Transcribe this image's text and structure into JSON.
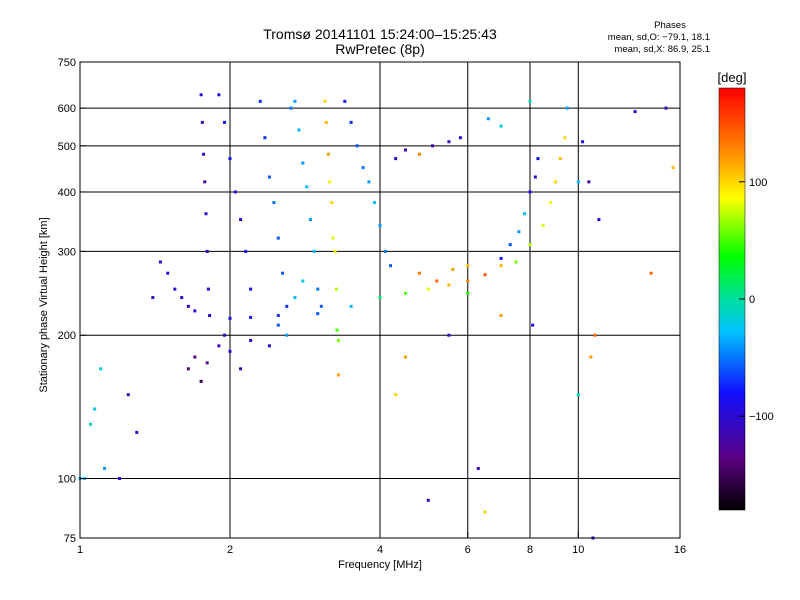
{
  "title_line1": "Tromsø 20141101 15:24:00–15:25:43",
  "title_line2": "RwPretec (8p)",
  "stats": {
    "header": "Phases",
    "line_o": "mean, sd,O: −79.1, 18.1",
    "line_x": "mean, sd,X:  86.9, 25.1"
  },
  "colorbar": {
    "unit_label": "[deg]",
    "range": [
      -180,
      180
    ],
    "ticks": [
      {
        "value": 100,
        "label": "100"
      },
      {
        "value": 0,
        "label": "0"
      },
      {
        "value": -100,
        "label": "−100"
      }
    ]
  },
  "chart_data": {
    "type": "scatter",
    "xlabel": "Frequency [MHz]",
    "ylabel": "Stationary phase Virtual Height [km]",
    "xscale": "log",
    "yscale": "log",
    "xlim": [
      1,
      16
    ],
    "ylim": [
      75,
      750
    ],
    "x_ticks": [
      {
        "value": 1,
        "label": "1"
      },
      {
        "value": 2,
        "label": "2"
      },
      {
        "value": 4,
        "label": "4"
      },
      {
        "value": 6,
        "label": "6"
      },
      {
        "value": 8,
        "label": "8"
      },
      {
        "value": 10,
        "label": "10"
      },
      {
        "value": 16,
        "label": "16"
      }
    ],
    "y_ticks": [
      {
        "value": 75,
        "label": "75"
      },
      {
        "value": 100,
        "label": "100"
      },
      {
        "value": 200,
        "label": "200"
      },
      {
        "value": 300,
        "label": "300"
      },
      {
        "value": 400,
        "label": "400"
      },
      {
        "value": 500,
        "label": "500"
      },
      {
        "value": 600,
        "label": "600"
      },
      {
        "value": 750,
        "label": "750"
      }
    ],
    "grid_x": [
      2,
      4,
      6,
      8,
      10
    ],
    "grid_y": [
      100,
      200,
      300,
      400,
      500,
      600
    ],
    "grid": true,
    "color_encoding": "phase in degrees",
    "series": [
      {
        "points": [
          [
            1.0,
            100,
            -30
          ],
          [
            1.02,
            100,
            -20
          ],
          [
            1.05,
            130,
            -10
          ],
          [
            1.07,
            140,
            -20
          ],
          [
            1.1,
            170,
            -20
          ],
          [
            1.12,
            105,
            -40
          ],
          [
            1.2,
            100,
            -90
          ],
          [
            1.25,
            150,
            -110
          ],
          [
            1.3,
            125,
            -100
          ],
          [
            1.4,
            240,
            -110
          ],
          [
            1.45,
            285,
            -100
          ],
          [
            1.5,
            270,
            -90
          ],
          [
            1.55,
            250,
            -100
          ],
          [
            1.6,
            240,
            -100
          ],
          [
            1.65,
            230,
            -110
          ],
          [
            1.7,
            225,
            -100
          ]
        ]
      },
      {
        "points": [
          [
            1.65,
            170,
            -140
          ],
          [
            1.7,
            180,
            -140
          ],
          [
            1.75,
            160,
            -150
          ],
          [
            1.8,
            175,
            -130
          ],
          [
            1.9,
            190,
            -120
          ],
          [
            1.95,
            200,
            -110
          ],
          [
            2.0,
            185,
            -100
          ],
          [
            2.1,
            170,
            -110
          ],
          [
            2.2,
            195,
            -100
          ],
          [
            2.4,
            190,
            -90
          ],
          [
            2.5,
            210,
            -60
          ],
          [
            2.6,
            200,
            -40
          ],
          [
            2.7,
            240,
            -30
          ],
          [
            2.8,
            260,
            -20
          ]
        ]
      },
      {
        "points": [
          [
            1.75,
            640,
            -100
          ],
          [
            1.76,
            560,
            -110
          ],
          [
            1.77,
            480,
            -100
          ],
          [
            1.78,
            420,
            -120
          ],
          [
            1.79,
            360,
            -100
          ],
          [
            1.8,
            300,
            -110
          ],
          [
            1.81,
            250,
            -100
          ],
          [
            1.82,
            220,
            -100
          ],
          [
            1.9,
            640,
            -90
          ],
          [
            1.95,
            560,
            -80
          ],
          [
            2.0,
            470,
            -80
          ],
          [
            2.05,
            400,
            -100
          ],
          [
            2.1,
            350,
            -90
          ],
          [
            2.15,
            300,
            -80
          ],
          [
            2.2,
            250,
            -80
          ],
          [
            2.3,
            620,
            -70
          ],
          [
            2.35,
            520,
            -70
          ],
          [
            2.4,
            430,
            -60
          ],
          [
            2.45,
            380,
            -50
          ],
          [
            2.5,
            320,
            -60
          ],
          [
            2.55,
            270,
            -60
          ],
          [
            2.6,
            230,
            -70
          ],
          [
            2.65,
            600,
            -50
          ]
        ]
      },
      {
        "points": [
          [
            2.7,
            620,
            -40
          ],
          [
            2.75,
            540,
            -30
          ],
          [
            2.8,
            460,
            -40
          ],
          [
            2.85,
            410,
            -30
          ],
          [
            2.9,
            350,
            -40
          ],
          [
            2.95,
            300,
            -30
          ],
          [
            3.0,
            250,
            -50
          ],
          [
            3.05,
            230,
            -60
          ]
        ]
      },
      {
        "points": [
          [
            3.1,
            620,
            100
          ],
          [
            3.12,
            560,
            110
          ],
          [
            3.15,
            480,
            120
          ],
          [
            3.17,
            420,
            90
          ],
          [
            3.2,
            380,
            100
          ],
          [
            3.22,
            320,
            80
          ],
          [
            3.25,
            300,
            90
          ],
          [
            3.27,
            250,
            70
          ],
          [
            3.28,
            205,
            50
          ],
          [
            3.3,
            195,
            60
          ]
        ]
      },
      {
        "points": [
          [
            3.4,
            620,
            -80
          ],
          [
            3.5,
            560,
            -70
          ],
          [
            3.6,
            500,
            -60
          ],
          [
            3.7,
            450,
            -50
          ],
          [
            3.8,
            420,
            -40
          ],
          [
            3.9,
            380,
            -30
          ],
          [
            4.0,
            340,
            -40
          ],
          [
            4.1,
            300,
            -50
          ],
          [
            4.2,
            280,
            -60
          ]
        ]
      },
      {
        "points": [
          [
            2.0,
            217,
            -90
          ],
          [
            2.2,
            218,
            -80
          ],
          [
            2.5,
            220,
            -70
          ],
          [
            3.0,
            222,
            -60
          ],
          [
            3.5,
            230,
            -30
          ],
          [
            4.0,
            240,
            10
          ],
          [
            4.5,
            245,
            50
          ],
          [
            5.0,
            250,
            80
          ],
          [
            5.5,
            255,
            110
          ],
          [
            6.0,
            260,
            130
          ],
          [
            6.5,
            268,
            150
          ],
          [
            7.0,
            280,
            110
          ]
        ]
      },
      {
        "points": [
          [
            7.0,
            290,
            -80
          ],
          [
            7.3,
            310,
            -60
          ],
          [
            7.6,
            330,
            -40
          ],
          [
            7.8,
            360,
            -30
          ],
          [
            8.0,
            400,
            -90
          ],
          [
            8.2,
            430,
            -100
          ],
          [
            8.3,
            470,
            -80
          ]
        ]
      },
      {
        "points": [
          [
            7.5,
            285,
            60
          ],
          [
            8.0,
            310,
            70
          ],
          [
            8.5,
            340,
            80
          ],
          [
            8.8,
            380,
            90
          ],
          [
            9.0,
            420,
            100
          ],
          [
            9.2,
            470,
            110
          ],
          [
            9.4,
            520,
            100
          ]
        ]
      },
      {
        "points": [
          [
            4.3,
            470,
            -100
          ],
          [
            4.5,
            490,
            -110
          ],
          [
            4.8,
            480,
            130
          ],
          [
            5.1,
            500,
            -120
          ],
          [
            5.5,
            510,
            -110
          ],
          [
            5.8,
            520,
            -100
          ],
          [
            4.8,
            270,
            130
          ],
          [
            5.2,
            260,
            140
          ],
          [
            5.6,
            275,
            120
          ],
          [
            6.0,
            280,
            110
          ]
        ]
      },
      {
        "points": [
          [
            6.6,
            570,
            -40
          ],
          [
            7.0,
            550,
            -20
          ],
          [
            8.0,
            620,
            -10
          ],
          [
            9.5,
            600,
            -40
          ],
          [
            10.2,
            510,
            -90
          ],
          [
            10.5,
            420,
            -120
          ],
          [
            11.0,
            350,
            -100
          ],
          [
            13.0,
            590,
            -110
          ],
          [
            14.0,
            270,
            140
          ],
          [
            15.0,
            600,
            -110
          ],
          [
            15.5,
            450,
            110
          ],
          [
            10.0,
            420,
            -30
          ],
          [
            10.0,
            150,
            -10
          ],
          [
            10.6,
            180,
            120
          ],
          [
            10.8,
            200,
            140
          ]
        ]
      },
      {
        "points": [
          [
            5.0,
            90,
            -100
          ],
          [
            6.5,
            85,
            100
          ],
          [
            6.3,
            105,
            -110
          ],
          [
            10.7,
            75,
            -100
          ],
          [
            8.1,
            210,
            -90
          ],
          [
            7.0,
            220,
            120
          ],
          [
            6.0,
            245,
            40
          ],
          [
            5.5,
            200,
            -110
          ],
          [
            4.5,
            180,
            120
          ],
          [
            4.3,
            150,
            100
          ],
          [
            3.3,
            165,
            120
          ]
        ]
      }
    ]
  }
}
